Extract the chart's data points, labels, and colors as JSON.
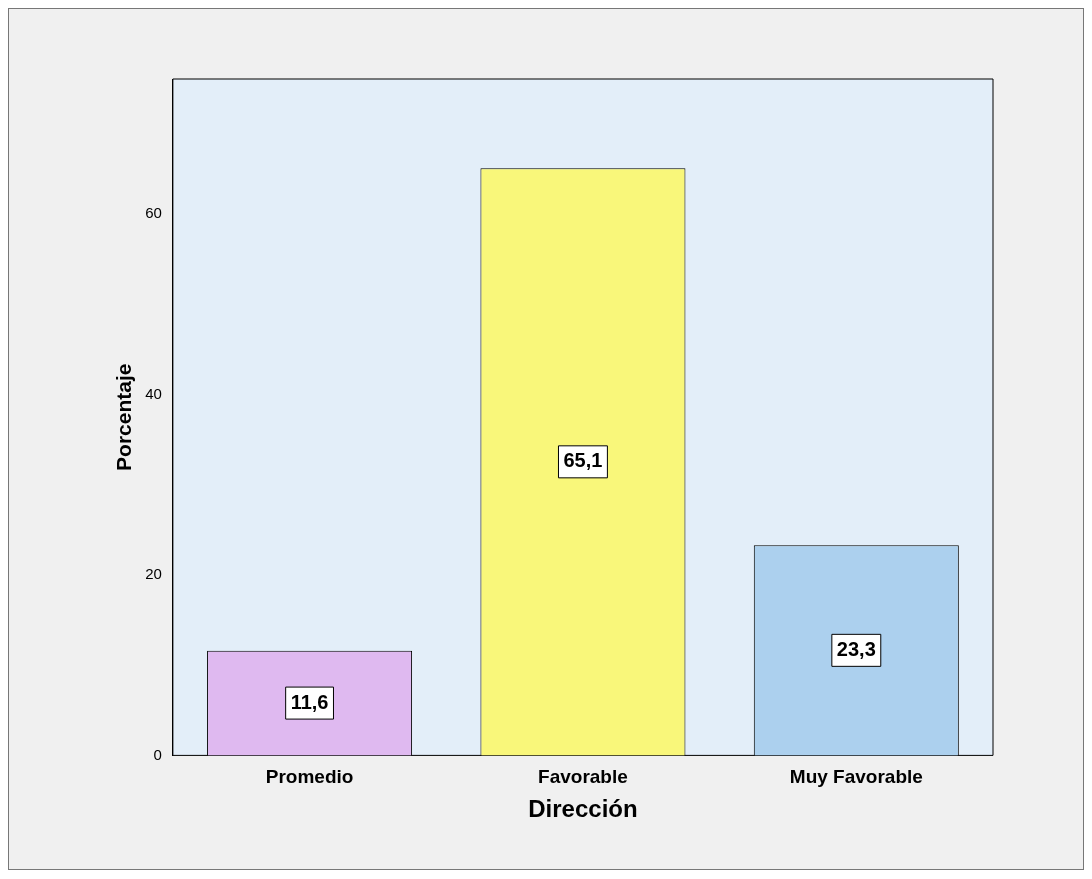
{
  "chart_data": {
    "type": "bar",
    "xlabel": "Dirección",
    "ylabel": "Porcentaje",
    "categories": [
      "Promedio",
      "Favorable",
      "Muy Favorable"
    ],
    "values": [
      11.6,
      65.1,
      23.3
    ],
    "colors": [
      "#dfb9f0",
      "#f9f77a",
      "#acd0ee"
    ],
    "value_labels": [
      "11,6",
      "65,1",
      "23,3"
    ],
    "ylim": [
      0,
      75
    ],
    "yticks": [
      0,
      20,
      40,
      60
    ],
    "grid": false,
    "legend": false
  }
}
